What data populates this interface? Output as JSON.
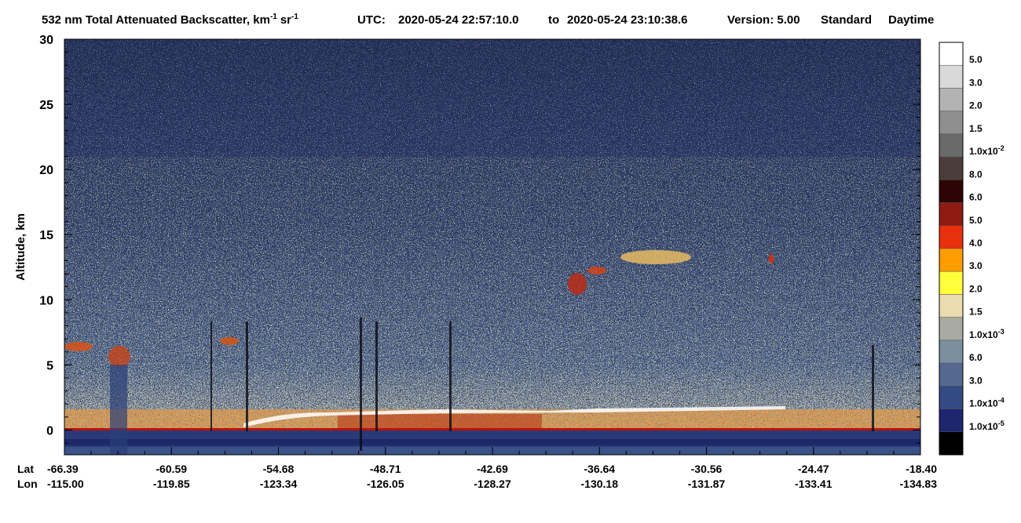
{
  "chart_data": {
    "type": "curtain",
    "title": "532 nm Total Attenuated Backscatter, km",
    "title_unit_exp": "-1",
    "title_unit2": "sr",
    "title_unit2_exp": "-1",
    "utc_label": "UTC:",
    "utc_start": "2020-05-24 22:57:10.0",
    "utc_to": "to",
    "utc_end": "2020-05-24 23:10:38.6",
    "version": "Version: 5.00",
    "product": "Standard",
    "daytime": "Daytime",
    "y_label": "Altitude, km",
    "ylim": [
      -1.9,
      30
    ],
    "yticks": [
      0,
      5,
      10,
      15,
      20,
      25,
      30
    ],
    "lat_label": "Lat",
    "lon_label": "Lon",
    "lat": [
      "-66.39",
      "-60.59",
      "-54.68",
      "-48.71",
      "-42.69",
      "-36.64",
      "-30.56",
      "-24.47",
      "-18.40"
    ],
    "lon": [
      "-115.00",
      "-119.85",
      "-123.34",
      "-126.05",
      "-128.27",
      "-130.18",
      "-131.87",
      "-133.41",
      "-134.83"
    ],
    "colorbar": {
      "colors": [
        "#ffffff",
        "#d9d9d9",
        "#b3b3b3",
        "#8f8f8f",
        "#6a6a6a",
        "#4a3d3a",
        "#2e0505",
        "#8e1a12",
        "#e8300c",
        "#ff9c00",
        "#ffff3c",
        "#eadcae",
        "#a9aba3",
        "#7a8fa0",
        "#55698f",
        "#344a82",
        "#1f2670",
        "#000000"
      ],
      "labels": [
        {
          "base": "5.0"
        },
        {
          "base": "3.0"
        },
        {
          "base": "2.0"
        },
        {
          "base": "1.5"
        },
        {
          "base": "1.0x10",
          "exp": "-2"
        },
        {
          "base": "8.0"
        },
        {
          "base": "6.0"
        },
        {
          "base": "5.0"
        },
        {
          "base": "4.0"
        },
        {
          "base": "3.0"
        },
        {
          "base": "2.0"
        },
        {
          "base": "1.5"
        },
        {
          "base": "1.0x10",
          "exp": "-3"
        },
        {
          "base": "6.0"
        },
        {
          "base": "3.0"
        },
        {
          "base": "1.0x10",
          "exp": "-4"
        },
        {
          "base": "1.0x10",
          "exp": "-5"
        }
      ]
    }
  }
}
